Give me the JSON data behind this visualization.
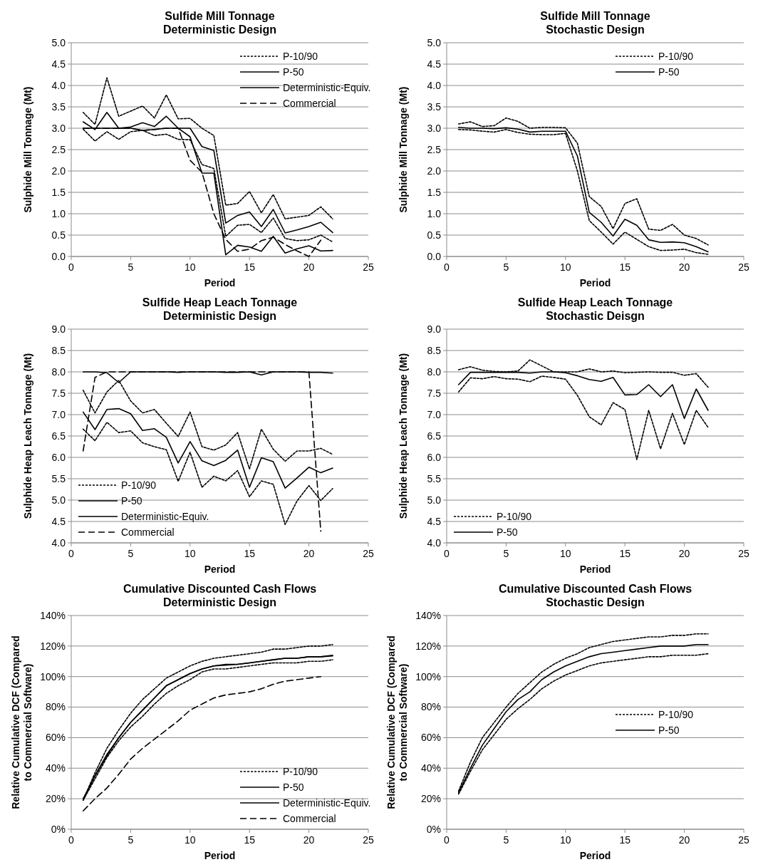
{
  "chart_data": [
    {
      "type": "line",
      "title": "Sulfide Mill Tonnage",
      "subtitle": "Deterministic Design",
      "xlabel": "Period",
      "ylabel": "Sulphide Mill Tonnage (Mt)",
      "x": [
        1,
        2,
        3,
        4,
        5,
        6,
        7,
        8,
        9,
        10,
        11,
        12,
        13,
        14,
        15,
        16,
        17,
        18,
        19,
        20,
        21,
        22
      ],
      "xlim": [
        0,
        25
      ],
      "xticks": [
        0,
        5,
        10,
        15,
        20,
        25
      ],
      "ylim": [
        0,
        5
      ],
      "yticks": [
        {
          "value": 0,
          "label": "0.0"
        },
        {
          "value": 0.5,
          "label": "0.5"
        },
        {
          "value": 1,
          "label": "1.0"
        },
        {
          "value": 1.5,
          "label": "1.5"
        },
        {
          "value": 2,
          "label": "2.0"
        },
        {
          "value": 2.5,
          "label": "2.5"
        },
        {
          "value": 3,
          "label": "3.0"
        },
        {
          "value": 3.5,
          "label": "3.5"
        },
        {
          "value": 4,
          "label": "4.0"
        },
        {
          "value": 4.5,
          "label": "4.5"
        },
        {
          "value": 5,
          "label": "5.0"
        }
      ],
      "grid": "y",
      "legend": "top right",
      "series": [
        {
          "name": "P-10/90",
          "color": "#000000",
          "line_style": "dotted",
          "values": [
            3.37,
            3.09,
            4.18,
            3.28,
            3.4,
            3.52,
            3.24,
            3.78,
            3.22,
            3.23,
            3.0,
            2.83,
            1.2,
            1.24,
            1.52,
            1.02,
            1.45,
            0.88,
            0.92,
            0.96,
            1.16,
            0.88
          ]
        },
        {
          "color": "#000000",
          "line_style": "dotted",
          "values": [
            2.98,
            2.7,
            2.92,
            2.74,
            2.92,
            2.95,
            2.83,
            2.86,
            2.74,
            2.73,
            2.15,
            2.06,
            0.47,
            0.73,
            0.75,
            0.56,
            0.9,
            0.42,
            0.37,
            0.39,
            0.5,
            0.34
          ]
        },
        {
          "name": "P-50",
          "color": "#000000",
          "line_style": "solid",
          "values": [
            3.15,
            2.97,
            3.37,
            3.0,
            3.03,
            3.13,
            3.04,
            3.28,
            3.0,
            3.0,
            2.57,
            2.48,
            0.78,
            0.96,
            1.04,
            0.7,
            1.1,
            0.55,
            0.62,
            0.7,
            0.8,
            0.56
          ]
        },
        {
          "name": "Deterministic-Equiv.",
          "color": "#000000",
          "line_style": "solid",
          "values": [
            3.0,
            3.0,
            3.0,
            3.0,
            3.0,
            2.95,
            2.97,
            3.0,
            3.0,
            2.8,
            1.95,
            1.95,
            0.04,
            0.26,
            0.22,
            0.12,
            0.47,
            0.08,
            0.18,
            0.25,
            0.13,
            0.14
          ]
        },
        {
          "name": "Commercial",
          "color": "#000000",
          "line_style": "dashed",
          "values": [
            3.0,
            3.0,
            3.0,
            3.0,
            3.0,
            2.95,
            2.97,
            3.0,
            3.0,
            2.25,
            1.97,
            1.0,
            0.4,
            0.12,
            0.17,
            0.37,
            0.45,
            0.28,
            0.13,
            0.0,
            0.38,
            null
          ]
        }
      ]
    },
    {
      "type": "line",
      "title": "Sulfide Mill Tonnage",
      "subtitle": "Stochastic Design",
      "xlabel": "Period",
      "ylabel": "Sulphide Mill Tonnage (Mt)",
      "x": [
        1,
        2,
        3,
        4,
        5,
        6,
        7,
        8,
        9,
        10,
        11,
        12,
        13,
        14,
        15,
        16,
        17,
        18,
        19,
        20,
        21,
        22
      ],
      "xlim": [
        0,
        25
      ],
      "xticks": [
        0,
        5,
        10,
        15,
        20,
        25
      ],
      "ylim": [
        0,
        5
      ],
      "yticks": [
        {
          "value": 0,
          "label": "0.0"
        },
        {
          "value": 0.5,
          "label": "0.5"
        },
        {
          "value": 1,
          "label": "1.0"
        },
        {
          "value": 1.5,
          "label": "1.5"
        },
        {
          "value": 2,
          "label": "2.0"
        },
        {
          "value": 2.5,
          "label": "2.5"
        },
        {
          "value": 3,
          "label": "3.0"
        },
        {
          "value": 3.5,
          "label": "3.5"
        },
        {
          "value": 4,
          "label": "4.0"
        },
        {
          "value": 4.5,
          "label": "4.5"
        },
        {
          "value": 5,
          "label": "5.0"
        }
      ],
      "grid": "y",
      "legend": "top right",
      "series": [
        {
          "name": "P-10/90",
          "color": "#000000",
          "line_style": "dotted",
          "values": [
            3.1,
            3.15,
            3.04,
            3.06,
            3.24,
            3.16,
            3.0,
            3.02,
            3.02,
            3.01,
            2.65,
            1.4,
            1.17,
            0.65,
            1.24,
            1.35,
            0.64,
            0.61,
            0.75,
            0.5,
            0.42,
            0.27
          ]
        },
        {
          "color": "#000000",
          "line_style": "dotted",
          "values": [
            2.97,
            2.96,
            2.93,
            2.91,
            2.97,
            2.9,
            2.86,
            2.85,
            2.85,
            2.88,
            2.0,
            0.84,
            0.57,
            0.29,
            0.57,
            0.4,
            0.23,
            0.14,
            0.15,
            0.17,
            0.09,
            0.05
          ]
        },
        {
          "name": "P-50",
          "color": "#000000",
          "line_style": "solid",
          "values": [
            3.02,
            3.0,
            3.0,
            2.99,
            3.01,
            2.98,
            2.91,
            2.93,
            2.93,
            2.93,
            2.35,
            1.03,
            0.8,
            0.48,
            0.87,
            0.73,
            0.39,
            0.33,
            0.34,
            0.32,
            0.23,
            0.11
          ]
        }
      ]
    },
    {
      "type": "line",
      "title": "Sulfide Heap Leach Tonnage",
      "subtitle": "Deterministic Design",
      "xlabel": "Period",
      "ylabel": "Sulphide Heap Leach Tonnage (Mt)",
      "x": [
        1,
        2,
        3,
        4,
        5,
        6,
        7,
        8,
        9,
        10,
        11,
        12,
        13,
        14,
        15,
        16,
        17,
        18,
        19,
        20,
        21,
        22
      ],
      "xlim": [
        0,
        25
      ],
      "xticks": [
        0,
        5,
        10,
        15,
        20,
        25
      ],
      "ylim": [
        4,
        9
      ],
      "yticks": [
        {
          "value": 4,
          "label": "4.0"
        },
        {
          "value": 4.5,
          "label": "4.5"
        },
        {
          "value": 5,
          "label": "5.0"
        },
        {
          "value": 5.5,
          "label": "5.5"
        },
        {
          "value": 6,
          "label": "6.0"
        },
        {
          "value": 6.5,
          "label": "6.5"
        },
        {
          "value": 7,
          "label": "7.0"
        },
        {
          "value": 7.5,
          "label": "7.5"
        },
        {
          "value": 8,
          "label": "8.0"
        },
        {
          "value": 8.5,
          "label": "8.5"
        },
        {
          "value": 9,
          "label": "9.0"
        }
      ],
      "grid": "y",
      "legend": "bottom left",
      "series": [
        {
          "name": "P-10/90",
          "color": "#000000",
          "line_style": "dotted",
          "values": [
            7.57,
            7.04,
            7.53,
            7.8,
            7.32,
            7.04,
            7.12,
            6.8,
            6.49,
            7.06,
            6.25,
            6.17,
            6.29,
            6.58,
            5.73,
            6.66,
            6.19,
            5.91,
            6.15,
            6.15,
            6.21,
            6.07
          ]
        },
        {
          "color": "#000000",
          "line_style": "dotted",
          "values": [
            6.66,
            6.39,
            6.82,
            6.58,
            6.62,
            6.34,
            6.25,
            6.18,
            5.44,
            6.12,
            5.3,
            5.56,
            5.45,
            5.69,
            5.08,
            5.45,
            5.37,
            4.43,
            4.98,
            5.34,
            4.99,
            5.27
          ]
        },
        {
          "name": "P-50",
          "color": "#000000",
          "line_style": "solid",
          "values": [
            7.06,
            6.65,
            7.12,
            7.14,
            7.02,
            6.63,
            6.67,
            6.47,
            5.87,
            6.37,
            5.92,
            5.81,
            5.93,
            6.17,
            5.3,
            5.99,
            5.9,
            5.28,
            5.52,
            5.77,
            5.64,
            5.75
          ]
        },
        {
          "name": "Deterministic-Equiv.",
          "color": "#000000",
          "line_style": "solid",
          "values": [
            8.0,
            8.0,
            7.98,
            7.75,
            8.0,
            8.0,
            8.0,
            8.0,
            7.99,
            8.0,
            8.0,
            8.0,
            7.99,
            7.99,
            8.0,
            7.93,
            8.0,
            8.0,
            8.0,
            7.99,
            7.99,
            7.97
          ]
        },
        {
          "name": "Commercial",
          "color": "#000000",
          "line_style": "dashed",
          "values": [
            6.15,
            7.87,
            8.0,
            8.0,
            8.0,
            8.0,
            8.0,
            8.0,
            8.0,
            8.0,
            8.0,
            8.0,
            8.0,
            8.0,
            8.0,
            8.0,
            8.0,
            8.0,
            8.0,
            8.0,
            4.27,
            null
          ]
        }
      ]
    },
    {
      "type": "line",
      "title": "Sulfide Heap Leach Tonnage",
      "subtitle": "Stochastic Deisgn",
      "xlabel": "Period",
      "ylabel": "Sulphide Heap Leach Tonnage (Mt)",
      "x": [
        1,
        2,
        3,
        4,
        5,
        6,
        7,
        8,
        9,
        10,
        11,
        12,
        13,
        14,
        15,
        16,
        17,
        18,
        19,
        20,
        21,
        22
      ],
      "xlim": [
        0,
        25
      ],
      "xticks": [
        0,
        5,
        10,
        15,
        20,
        25
      ],
      "ylim": [
        4,
        9
      ],
      "yticks": [
        {
          "value": 4,
          "label": "4.0"
        },
        {
          "value": 4.5,
          "label": "4.5"
        },
        {
          "value": 5,
          "label": "5.0"
        },
        {
          "value": 5.5,
          "label": "5.5"
        },
        {
          "value": 6,
          "label": "6.0"
        },
        {
          "value": 6.5,
          "label": "6.5"
        },
        {
          "value": 7,
          "label": "7.0"
        },
        {
          "value": 7.5,
          "label": "7.5"
        },
        {
          "value": 8,
          "label": "8.0"
        },
        {
          "value": 8.5,
          "label": "8.5"
        },
        {
          "value": 9,
          "label": "9.0"
        }
      ],
      "grid": "y",
      "legend": "bottom left",
      "series": [
        {
          "name": "P-10/90",
          "color": "#000000",
          "line_style": "dotted",
          "values": [
            8.05,
            8.12,
            8.04,
            8.01,
            8.0,
            8.02,
            8.28,
            8.14,
            8.0,
            8.0,
            8.0,
            8.07,
            8.0,
            8.02,
            7.98,
            7.99,
            8.0,
            7.99,
            7.99,
            7.92,
            7.96,
            7.64
          ]
        },
        {
          "color": "#000000",
          "line_style": "dotted",
          "values": [
            7.53,
            7.86,
            7.84,
            7.89,
            7.84,
            7.83,
            7.77,
            7.9,
            7.87,
            7.83,
            7.45,
            6.95,
            6.76,
            7.28,
            7.12,
            5.95,
            7.1,
            6.2,
            7.03,
            6.3,
            7.1,
            6.7
          ]
        },
        {
          "name": "P-50",
          "color": "#000000",
          "line_style": "solid",
          "values": [
            7.7,
            7.99,
            7.99,
            7.99,
            7.99,
            7.99,
            7.97,
            8.0,
            8.0,
            7.98,
            7.91,
            7.82,
            7.78,
            7.87,
            7.46,
            7.47,
            7.7,
            7.42,
            7.7,
            6.91,
            7.6,
            7.1
          ]
        }
      ]
    },
    {
      "type": "line",
      "title": "Cumulative Discounted Cash Flows",
      "subtitle": "Deterministic Design",
      "xlabel": "Period",
      "ylabel": "Relative Cumulative DCF (Compared to Commercial Software)",
      "x": [
        1,
        2,
        3,
        4,
        5,
        6,
        7,
        8,
        9,
        10,
        11,
        12,
        13,
        14,
        15,
        16,
        17,
        18,
        19,
        20,
        21,
        22
      ],
      "xlim": [
        0,
        25
      ],
      "xticks": [
        0,
        5,
        10,
        15,
        20,
        25
      ],
      "ylim": [
        0,
        140
      ],
      "yticks": [
        {
          "value": 0,
          "label": "0%"
        },
        {
          "value": 20,
          "label": "20%"
        },
        {
          "value": 40,
          "label": "40%"
        },
        {
          "value": 60,
          "label": "60%"
        },
        {
          "value": 80,
          "label": "80%"
        },
        {
          "value": 100,
          "label": "100%"
        },
        {
          "value": 120,
          "label": "120%"
        },
        {
          "value": 140,
          "label": "140%"
        }
      ],
      "grid": "y",
      "legend": "bottom right",
      "series": [
        {
          "name": "P-10/90",
          "color": "#000000",
          "line_style": "dotted",
          "values": [
            19,
            37,
            53,
            65,
            76,
            85,
            92,
            99,
            103,
            107,
            110,
            112,
            113,
            114,
            115,
            116,
            118,
            118,
            119,
            120,
            120,
            121
          ]
        },
        {
          "color": "#000000",
          "line_style": "dotted",
          "values": [
            19,
            33,
            47,
            58,
            67,
            74,
            82,
            89,
            94,
            98,
            103,
            105,
            105,
            106,
            107,
            108,
            109,
            109,
            109,
            110,
            110,
            111
          ]
        },
        {
          "name": "P-50",
          "color": "#000000",
          "line_style": "solid",
          "values": [
            19,
            35,
            49,
            60,
            70,
            78,
            86,
            94,
            98,
            102,
            105,
            107,
            107.5,
            108,
            109,
            110,
            111,
            112,
            112,
            113,
            113,
            113.5
          ]
        },
        {
          "name": "Deterministic-Equiv.",
          "color": "#000000",
          "line_style": "solid",
          "values": [
            20,
            35,
            48,
            60,
            70,
            78,
            86,
            94,
            98,
            102,
            105,
            107,
            108,
            108,
            109,
            110,
            111,
            112,
            112,
            113,
            113,
            114
          ]
        },
        {
          "name": "Commercial",
          "color": "#000000",
          "line_style": "dashed",
          "values": [
            12,
            20,
            27,
            36,
            46,
            53,
            59,
            65,
            71,
            78,
            82,
            86,
            88,
            89,
            90,
            92,
            95,
            97,
            98,
            99,
            100,
            null
          ]
        }
      ]
    },
    {
      "type": "line",
      "title": "Cumulative Discounted Cash Flows",
      "subtitle": "Stochastic Design",
      "xlabel": "Period",
      "ylabel": "Relative Cumulative DCF (Compared to Commercial Software)",
      "x": [
        1,
        2,
        3,
        4,
        5,
        6,
        7,
        8,
        9,
        10,
        11,
        12,
        13,
        14,
        15,
        16,
        17,
        18,
        19,
        20,
        21,
        22
      ],
      "xlim": [
        0,
        25
      ],
      "xticks": [
        0,
        5,
        10,
        15,
        20,
        25
      ],
      "ylim": [
        0,
        140
      ],
      "yticks": [
        {
          "value": 0,
          "label": "0%"
        },
        {
          "value": 20,
          "label": "20%"
        },
        {
          "value": 40,
          "label": "40%"
        },
        {
          "value": 60,
          "label": "60%"
        },
        {
          "value": 80,
          "label": "80%"
        },
        {
          "value": 100,
          "label": "100%"
        },
        {
          "value": 120,
          "label": "120%"
        },
        {
          "value": 140,
          "label": "140%"
        }
      ],
      "grid": "y",
      "legend": "right",
      "series": [
        {
          "name": "P-10/90",
          "color": "#000000",
          "line_style": "dotted",
          "values": [
            25,
            44,
            60,
            70,
            80,
            89,
            96,
            103,
            108,
            112,
            115,
            119,
            121,
            123,
            124,
            125,
            126,
            126,
            127,
            127,
            128,
            128
          ]
        },
        {
          "color": "#000000",
          "line_style": "dotted",
          "values": [
            23,
            38,
            52,
            62,
            72,
            79,
            85,
            92,
            97,
            101,
            104,
            107,
            109,
            110,
            111,
            112,
            113,
            113,
            114,
            114,
            114,
            115
          ]
        },
        {
          "name": "P-50",
          "color": "#000000",
          "line_style": "solid",
          "values": [
            24,
            40,
            55,
            66,
            77,
            85,
            90,
            98,
            103,
            107,
            110,
            113,
            115,
            116,
            117,
            118,
            119,
            120,
            120,
            120,
            121,
            121
          ]
        }
      ]
    }
  ]
}
